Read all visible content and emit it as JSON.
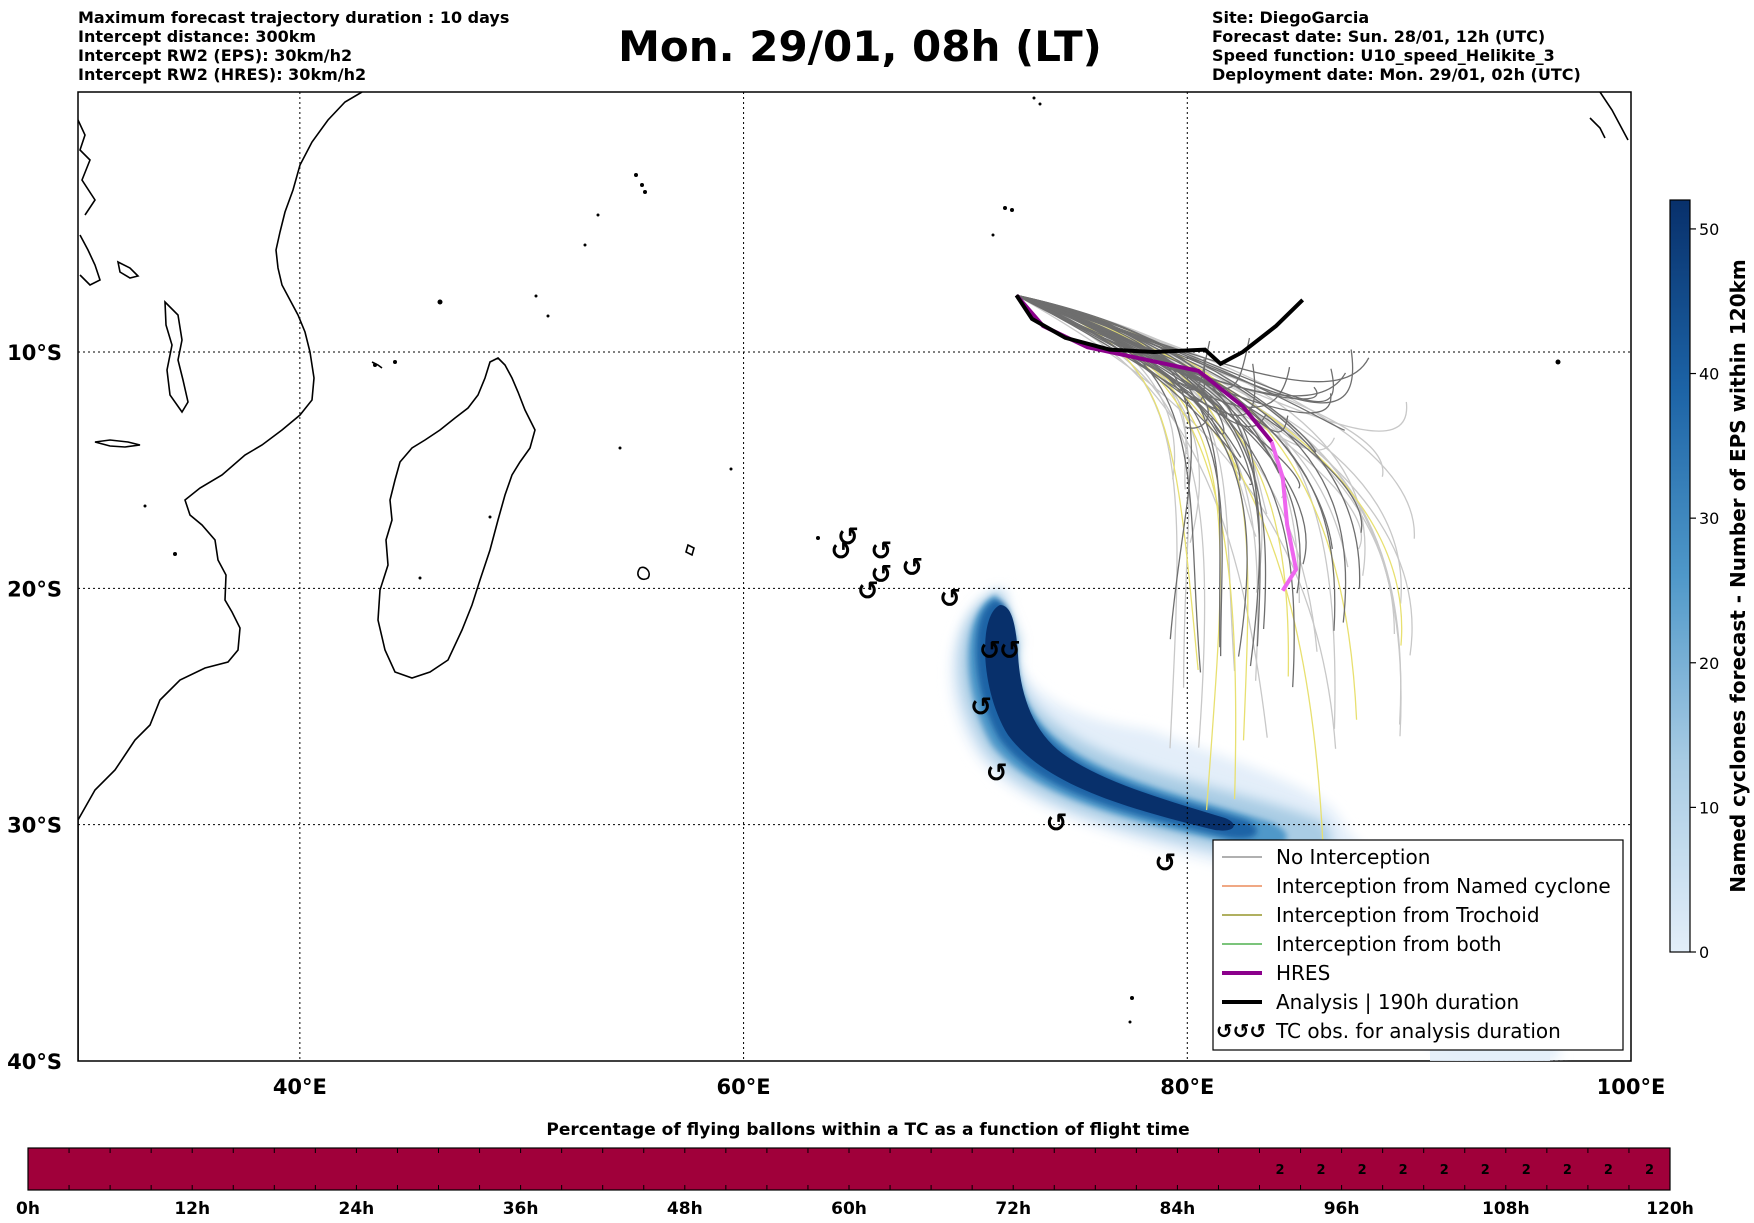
{
  "header": {
    "left_lines": [
      "Maximum forecast trajectory duration : 10 days",
      "Intercept distance: 300km",
      "Intercept RW2 (EPS):  30km/h2",
      "Intercept RW2 (HRES): 30km/h2"
    ],
    "title": "Mon. 29/01, 08h (LT)",
    "right_lines": [
      "Site: DiegoGarcia",
      "Forecast date: Sun. 28/01, 12h (UTC)",
      "Speed function: U10_speed_Helikite_3",
      "Deployment date: Mon. 29/01, 02h (UTC)"
    ]
  },
  "map": {
    "lon_range": [
      30,
      100
    ],
    "lat_range": [
      -40,
      1
    ],
    "lon_ticks": [
      {
        "value": 40,
        "label": "40°E"
      },
      {
        "value": 60,
        "label": "60°E"
      },
      {
        "value": 80,
        "label": "80°E"
      },
      {
        "value": 100,
        "label": "100°E"
      }
    ],
    "lat_ticks": [
      {
        "value": -10,
        "label": "10°S"
      },
      {
        "value": -20,
        "label": "20°S"
      },
      {
        "value": -30,
        "label": "30°S"
      },
      {
        "value": -40,
        "label": "40°S"
      }
    ],
    "colors": {
      "ensemble": "#6e6e6e",
      "ensemble_light": "#c8c8c8",
      "trochoid": "#e8e070",
      "hres": "#8b008b",
      "hres_later": "#ee66ee",
      "analysis": "#000000",
      "density": "#08306b"
    },
    "tc_obs_symbol": "↺",
    "tc_observations": [
      {
        "lon": 64.7,
        "lat": -17.8
      },
      {
        "lon": 64.4,
        "lat": -18.4
      },
      {
        "lon": 66.2,
        "lat": -18.4
      },
      {
        "lon": 66.2,
        "lat": -19.4
      },
      {
        "lon": 67.6,
        "lat": -19.1
      },
      {
        "lon": 65.6,
        "lat": -20.1
      },
      {
        "lon": 69.3,
        "lat": -20.4
      },
      {
        "lon": 71.1,
        "lat": -22.6
      },
      {
        "lon": 72.0,
        "lat": -22.6
      },
      {
        "lon": 70.7,
        "lat": -25.0
      },
      {
        "lon": 71.4,
        "lat": -27.8
      },
      {
        "lon": 74.1,
        "lat": -29.9
      },
      {
        "lon": 79.0,
        "lat": -31.6
      }
    ],
    "analysis_track": [
      [
        72.3,
        -7.6
      ],
      [
        73.0,
        -8.6
      ],
      [
        74.5,
        -9.4
      ],
      [
        76.5,
        -9.9
      ],
      [
        78.5,
        -10.0
      ],
      [
        80.8,
        -9.9
      ],
      [
        81.5,
        -10.5
      ],
      [
        82.5,
        -10.0
      ],
      [
        84.0,
        -8.9
      ],
      [
        85.2,
        -7.8
      ]
    ],
    "hres_track": [
      [
        72.3,
        -7.6
      ],
      [
        73.5,
        -8.9
      ],
      [
        75.5,
        -9.8
      ],
      [
        78.0,
        -10.3
      ],
      [
        80.5,
        -10.8
      ],
      [
        82.5,
        -12.3
      ],
      [
        83.8,
        -13.8
      ]
    ],
    "hres_track_later": [
      [
        83.8,
        -13.8
      ],
      [
        84.3,
        -15.3
      ],
      [
        84.5,
        -17.3
      ],
      [
        84.9,
        -19.2
      ],
      [
        84.3,
        -20.1
      ]
    ]
  },
  "legend": {
    "items": [
      {
        "label": "No Interception",
        "style": "thin",
        "color": "#808080"
      },
      {
        "label": "Interception from Named cyclone",
        "style": "thin",
        "color": "#e8743b"
      },
      {
        "label": "Interception from Trochoid",
        "style": "thin",
        "color": "#808000"
      },
      {
        "label": "Interception from both",
        "style": "thin",
        "color": "#2ca02c"
      },
      {
        "label": "HRES",
        "style": "thick",
        "color": "#8b008b"
      },
      {
        "label": "Analysis | 190h duration",
        "style": "thick",
        "color": "#000000"
      },
      {
        "label": "TC obs. for analysis duration",
        "style": "symbol",
        "color": "#000000"
      }
    ]
  },
  "colorbar": {
    "label": "Named cyclones forecast - Number of EPS within 120km",
    "min": 0,
    "max": 52,
    "ticks": [
      0,
      10,
      20,
      30,
      40,
      50
    ],
    "color_low": "#e3eef9",
    "color_high": "#08306b"
  },
  "timeline": {
    "title": "Percentage of flying ballons within a TC as a function of flight time",
    "tick_labels": [
      "0h",
      "12h",
      "24h",
      "36h",
      "48h",
      "60h",
      "72h",
      "84h",
      "96h",
      "108h",
      "120h"
    ],
    "max_hours": 120,
    "step_hours": 3,
    "bar_color": "#a0003a",
    "segments": [
      {
        "from_h": 90,
        "to_h": 120,
        "value": "2"
      }
    ]
  }
}
